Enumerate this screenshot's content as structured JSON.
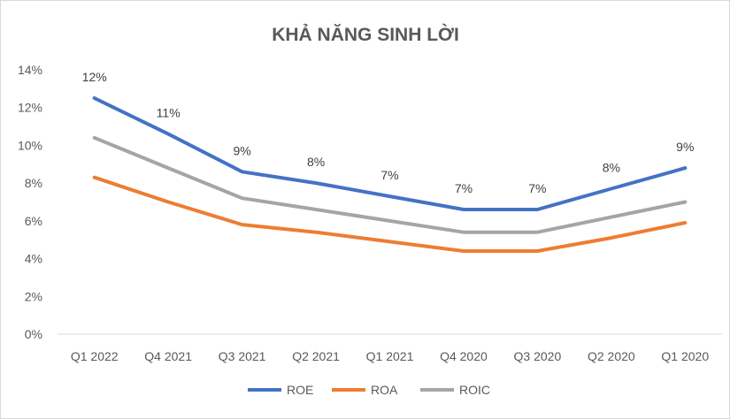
{
  "chart_data": {
    "type": "line",
    "title": "KHẢ NĂNG SINH LỜI",
    "xlabel": "",
    "ylabel": "",
    "categories": [
      "Q1 2022",
      "Q4 2021",
      "Q3 2021",
      "Q2 2021",
      "Q1 2021",
      "Q4 2020",
      "Q3 2020",
      "Q2 2020",
      "Q1 2020"
    ],
    "ylim": [
      0,
      14
    ],
    "yticks": [
      "0%",
      "2%",
      "4%",
      "6%",
      "8%",
      "10%",
      "12%",
      "14%"
    ],
    "grid": false,
    "legend_position": "bottom",
    "series": [
      {
        "name": "ROE",
        "color": "#4472c4",
        "values": [
          12.5,
          10.6,
          8.6,
          8.0,
          7.3,
          6.6,
          6.6,
          7.7,
          8.8
        ],
        "data_labels": [
          "12%",
          "11%",
          "9%",
          "8%",
          "7%",
          "7%",
          "7%",
          "8%",
          "9%"
        ]
      },
      {
        "name": "ROA",
        "color": "#ed7d31",
        "values": [
          8.3,
          7.0,
          5.8,
          5.4,
          4.9,
          4.4,
          4.4,
          5.1,
          5.9
        ]
      },
      {
        "name": "ROIC",
        "color": "#a5a5a5",
        "values": [
          10.4,
          8.8,
          7.2,
          6.6,
          6.0,
          5.4,
          5.4,
          6.2,
          7.0
        ]
      }
    ]
  }
}
